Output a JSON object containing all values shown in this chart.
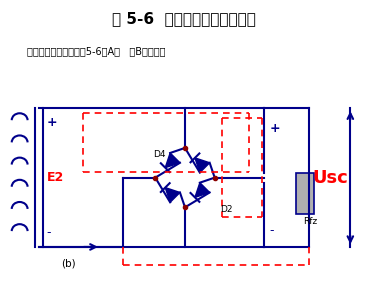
{
  "title": "图 5-6  桥式整流电路工作原理",
  "subtitle": "上述工作状态分别如图5-6（A）   （B）所示。",
  "label_E2": "E2",
  "label_b": "(b)",
  "label_D4": "D4",
  "label_D2": "D2",
  "label_Usc": "Usc",
  "label_Rfz": "Rfz",
  "bg_color": "#ffffff",
  "blue_dark": "#00008B",
  "red_color": "#FF0000",
  "gray_color": "#B0B0B0"
}
